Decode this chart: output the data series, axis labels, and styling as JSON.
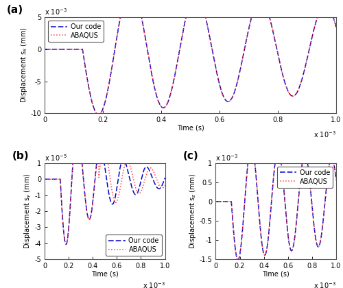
{
  "title_a": "(a)",
  "title_b": "(b)",
  "title_c": "(c)",
  "xlabel": "Time (s)",
  "ylabel_a": "Displacement s$_x$ (mm)",
  "ylabel_b": "Displacement s$_y$ (mm)",
  "ylabel_c": "Displacement s$_z$ (mm)",
  "ylim_a": [
    -10,
    5
  ],
  "ylim_b": [
    -5,
    1
  ],
  "ylim_c": [
    -1.5,
    1
  ],
  "yticks_a": [
    -10,
    -5,
    0,
    5
  ],
  "yticks_b": [
    -5,
    -4,
    -3,
    -2,
    -1,
    0,
    1
  ],
  "yticks_c": [
    -1.5,
    -1,
    -0.5,
    0,
    0.5,
    1
  ],
  "yexp_a": "x 10$^{-3}$",
  "yexp_b": "x 10$^{-5}$",
  "yexp_c": "x 10$^{-3}$",
  "xexp": "x 10$^{-3}$",
  "xlim": [
    0,
    1
  ],
  "xticks": [
    0,
    0.2,
    0.4,
    0.6,
    0.8,
    1.0
  ],
  "color_our": "#0000cc",
  "color_abaqus": "#ff4444",
  "legend_our": "Our code",
  "legend_abaqus": "ABAQUS",
  "bg_color": "#ffffff",
  "border_color": "#555555"
}
